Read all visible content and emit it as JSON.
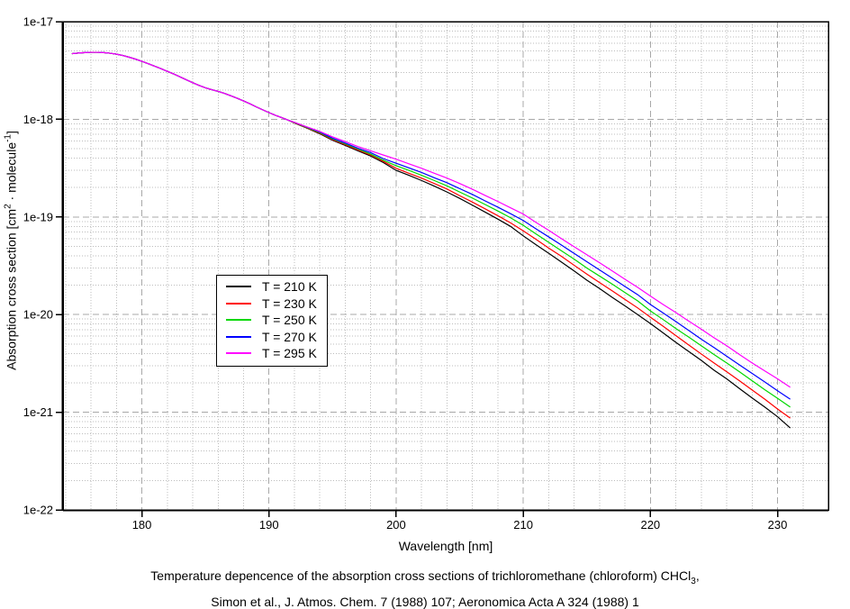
{
  "page": {
    "background": "#ffffff"
  },
  "chart_data": {
    "type": "line",
    "title": "",
    "xlabel": "Wavelength [nm]",
    "ylabel_parts": {
      "pre": "Absorption cross section [cm",
      "sup1": "2",
      "mid": " · molecule",
      "sup2": "-1",
      "post": "]"
    },
    "x_axis": {
      "min": 173.8,
      "max": 234.0,
      "major_ticks": [
        180,
        190,
        200,
        210,
        220,
        230
      ],
      "tick_labels": [
        "180",
        "190",
        "200",
        "210",
        "220",
        "230"
      ],
      "minor_step": 2,
      "minor_start": 174,
      "minor_end": 232
    },
    "y_axis": {
      "scale": "log10",
      "top_exponent": -17,
      "bottom_exponent": -22,
      "tick_labels": [
        "1e-17",
        "1e-18",
        "1e-19",
        "1e-20",
        "1e-21",
        "1e-22"
      ],
      "tick_exponents": [
        -17,
        -18,
        -19,
        -20,
        -21,
        -22
      ],
      "minor_mantissas": [
        2,
        3,
        4,
        5,
        6,
        7,
        8,
        9
      ]
    },
    "grid": {
      "major_color": "#a8a8a8",
      "minor_color": "#bdbdbd",
      "major_dash": "7,4",
      "minor_dash": "1,2"
    },
    "common_x": [
      174.5,
      175,
      175.5,
      176,
      176.5,
      177,
      177.5,
      178,
      178.5,
      179,
      179.5,
      180,
      180.5,
      181,
      181.5,
      182,
      182.5,
      183,
      183.5,
      184,
      184.5,
      185,
      185.5,
      186,
      186.5,
      187,
      187.5,
      188,
      188.5,
      189,
      189.5,
      190,
      190.5,
      191,
      191.5
    ],
    "common_values": [
      4.7e-18,
      4.77e-18,
      4.82e-18,
      4.85e-18,
      4.85e-18,
      4.82e-18,
      4.75e-18,
      4.64e-18,
      4.5e-18,
      4.32e-18,
      4.13e-18,
      3.92e-18,
      3.71e-18,
      3.5e-18,
      3.3e-18,
      3.1e-18,
      2.91e-18,
      2.72e-18,
      2.54e-18,
      2.37e-18,
      2.22e-18,
      2.1e-18,
      2.01e-18,
      1.93e-18,
      1.84e-18,
      1.74e-18,
      1.64e-18,
      1.54e-18,
      1.44e-18,
      1.34e-18,
      1.25e-18,
      1.17e-18,
      1.1e-18,
      1.04e-18,
      9.8e-19
    ],
    "tail_x": [
      192,
      193,
      194,
      195,
      196,
      197,
      198,
      199,
      200,
      201,
      202,
      203,
      204,
      205,
      206,
      207,
      208,
      209,
      210,
      211,
      212,
      213,
      214,
      215,
      216,
      217,
      218,
      219,
      220,
      221,
      222,
      223,
      224,
      225,
      226,
      227,
      228,
      229,
      230,
      231
    ],
    "series": [
      {
        "label": "T = 210 K",
        "color": "#000000",
        "tail_values": [
          9.15e-19,
          8.1e-19,
          7.1e-19,
          6.1e-19,
          5.4e-19,
          4.75e-19,
          4.2e-19,
          3.6e-19,
          3e-19,
          2.67e-19,
          2.36e-19,
          2.07e-19,
          1.8e-19,
          1.55e-19,
          1.32e-19,
          1.12e-19,
          9.5e-20,
          8e-20,
          6.4e-20,
          5.2e-20,
          4.25e-20,
          3.45e-20,
          2.8e-20,
          2.25e-20,
          1.85e-20,
          1.5e-20,
          1.23e-20,
          1e-20,
          8.1e-21,
          6.5e-21,
          5.2e-21,
          4.2e-21,
          3.4e-21,
          2.7e-21,
          2.2e-21,
          1.75e-21,
          1.4e-21,
          1.13e-21,
          9e-22,
          6.9e-22
        ]
      },
      {
        "label": "T = 230 K",
        "color": "#ff0000",
        "tail_values": [
          9.2e-19,
          8.15e-19,
          7.2e-19,
          6.2e-19,
          5.5e-19,
          4.85e-19,
          4.3e-19,
          3.7e-19,
          3.15e-19,
          2.8e-19,
          2.5e-19,
          2.2e-19,
          1.93e-19,
          1.65e-19,
          1.42e-19,
          1.21e-19,
          1.03e-19,
          8.7e-20,
          7.2e-20,
          5.9e-20,
          4.8e-20,
          3.95e-20,
          3.2e-20,
          2.6e-20,
          2.13e-20,
          1.75e-20,
          1.43e-20,
          1.17e-20,
          9.4e-21,
          7.6e-21,
          6.1e-21,
          4.9e-21,
          3.95e-21,
          3.2e-21,
          2.6e-21,
          2.1e-21,
          1.69e-21,
          1.36e-21,
          1.08e-21,
          8.7e-22
        ]
      },
      {
        "label": "T = 250 K",
        "color": "#00d800",
        "tail_values": [
          9.25e-19,
          8.2e-19,
          7.3e-19,
          6.3e-19,
          5.6e-19,
          4.95e-19,
          4.4e-19,
          3.8e-19,
          3.35e-19,
          3e-19,
          2.67e-19,
          2.36e-19,
          2.08e-19,
          1.8e-19,
          1.56e-19,
          1.34e-19,
          1.15e-19,
          9.8e-20,
          8.2e-20,
          6.7e-20,
          5.5e-20,
          4.5e-20,
          3.7e-20,
          3e-20,
          2.48e-20,
          2.05e-20,
          1.68e-20,
          1.38e-20,
          1.09e-20,
          8.9e-21,
          7.2e-21,
          5.9e-21,
          4.8e-21,
          3.9e-21,
          3.2e-21,
          2.6e-21,
          2.1e-21,
          1.7e-21,
          1.39e-21,
          1.13e-21
        ]
      },
      {
        "label": "T = 270 K",
        "color": "#0000ff",
        "tail_values": [
          9.3e-19,
          8.3e-19,
          7.4e-19,
          6.4e-19,
          5.7e-19,
          5.05e-19,
          4.55e-19,
          3.95e-19,
          3.55e-19,
          3.18e-19,
          2.85e-19,
          2.52e-19,
          2.24e-19,
          1.95e-19,
          1.7e-19,
          1.46e-19,
          1.26e-19,
          1.08e-19,
          9.2e-20,
          7.55e-20,
          6.25e-20,
          5.15e-20,
          4.23e-20,
          3.48e-20,
          2.87e-20,
          2.36e-20,
          1.94e-20,
          1.6e-20,
          1.27e-20,
          1.04e-20,
          8.5e-21,
          6.9e-21,
          5.6e-21,
          4.6e-21,
          3.75e-21,
          3.06e-21,
          2.5e-21,
          2.04e-21,
          1.66e-21,
          1.36e-21
        ]
      },
      {
        "label": "T = 295 K",
        "color": "#ff00ff",
        "tail_values": [
          9.3e-19,
          8.35e-19,
          7.5e-19,
          6.6e-19,
          5.9e-19,
          5.25e-19,
          4.75e-19,
          4.3e-19,
          3.9e-19,
          3.5e-19,
          3.15e-19,
          2.8e-19,
          2.5e-19,
          2.2e-19,
          1.92e-19,
          1.66e-19,
          1.44e-19,
          1.24e-19,
          1.07e-19,
          8.8e-20,
          7.3e-20,
          6e-20,
          4.95e-20,
          4.1e-20,
          3.4e-20,
          2.8e-20,
          2.3e-20,
          1.9e-20,
          1.55e-20,
          1.27e-20,
          1.05e-20,
          8.6e-21,
          7.1e-21,
          5.8e-21,
          4.8e-21,
          3.9e-21,
          3.2e-21,
          2.65e-21,
          2.2e-21,
          1.8e-21
        ]
      }
    ],
    "legend": {
      "position": "inside-left-middle",
      "border": "#000000",
      "background": "#ffffff"
    },
    "caption_line1_parts": {
      "pre": "Temperature depencence of the absorption cross sections of trichloromethane (chloroform) CHCl",
      "sub": "3",
      "post": ","
    },
    "caption_line2": "Simon et al., J. Atmos. Chem. 7 (1988) 107; Aeronomica Acta A 324 (1988) 1"
  }
}
